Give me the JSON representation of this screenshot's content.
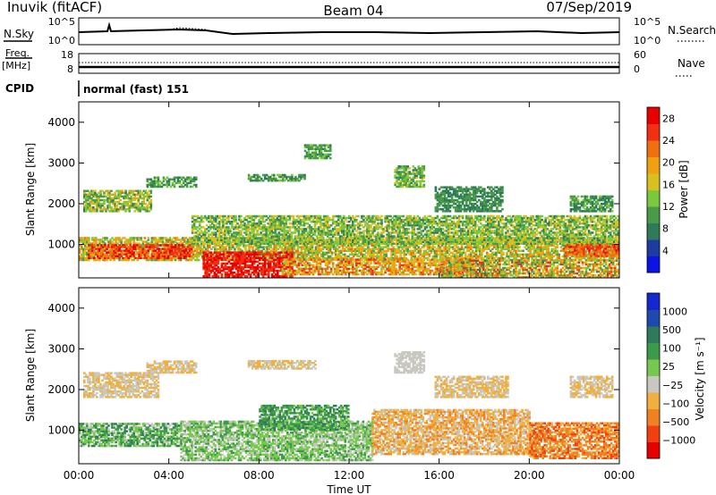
{
  "header": {
    "station": "Inuvik (fitACF)",
    "beam": "Beam 04",
    "date": "07/Sep/2019"
  },
  "nsky_panel": {
    "left_label": "N.Sky",
    "left_ticks": [
      "10^5",
      "10^0"
    ],
    "right_ticks": [
      "10^5",
      "10^0"
    ],
    "right_label": "N.Search"
  },
  "freq_panel": {
    "left_label_line1": "Freq.",
    "left_label_line2": "[MHz]",
    "left_ticks": [
      "18",
      "8"
    ],
    "right_ticks": [
      "60",
      "0"
    ],
    "right_label": "Nave"
  },
  "cpid": {
    "label": "CPID",
    "mode": "normal (fast) 151"
  },
  "colors": {
    "power_scale": [
      "#0a14e6",
      "#1e3ca0",
      "#2f7a5a",
      "#4a9a4a",
      "#7ac83c",
      "#d8c020",
      "#f0a010",
      "#f07010",
      "#f03010",
      "#e80000"
    ],
    "velocity_scale": [
      "#e80000",
      "#f04010",
      "#f08020",
      "#f0b040",
      "#c8c8c0",
      "#78c850",
      "#3c9a4a",
      "#2f7a5a",
      "#1e4ab0",
      "#1428d0"
    ]
  },
  "chart_data": [
    {
      "type": "heatmap",
      "name": "power",
      "xlabel": "",
      "ylabel": "Slant Range [km]",
      "x_ticks": [
        "00:00",
        "04:00",
        "08:00",
        "12:00",
        "16:00",
        "20:00",
        "00:00"
      ],
      "x_hours": [
        0,
        4,
        8,
        12,
        16,
        20,
        24
      ],
      "xlim": [
        0,
        24
      ],
      "y_ticks": [
        1000,
        2000,
        3000,
        4000
      ],
      "ylim": [
        180,
        4500
      ],
      "colorbar": {
        "label": "Power [dB]",
        "ticks": [
          "4",
          "8",
          "12",
          "16",
          "20",
          "24",
          "28"
        ],
        "range": [
          0,
          30
        ]
      },
      "regions": [
        {
          "t0": 0.0,
          "t1": 24.0,
          "r0": 600,
          "r1": 1150,
          "v0": 10,
          "v1": 22
        },
        {
          "t0": 0.4,
          "t1": 5.0,
          "r0": 650,
          "r1": 1000,
          "v0": 20,
          "v1": 30
        },
        {
          "t0": 5.5,
          "t1": 9.5,
          "r0": 200,
          "r1": 800,
          "v0": 24,
          "v1": 30
        },
        {
          "t0": 9.0,
          "t1": 17.5,
          "r0": 250,
          "r1": 650,
          "v0": 14,
          "v1": 26
        },
        {
          "t0": 0.2,
          "t1": 3.2,
          "r0": 1800,
          "r1": 2300,
          "v0": 8,
          "v1": 20
        },
        {
          "t0": 3.0,
          "t1": 5.2,
          "r0": 2400,
          "r1": 2650,
          "v0": 6,
          "v1": 14
        },
        {
          "t0": 7.5,
          "t1": 10.0,
          "r0": 2550,
          "r1": 2700,
          "v0": 6,
          "v1": 14
        },
        {
          "t0": 10.0,
          "t1": 11.2,
          "r0": 3100,
          "r1": 3450,
          "v0": 8,
          "v1": 14
        },
        {
          "t0": 14.0,
          "t1": 15.3,
          "r0": 2400,
          "r1": 2900,
          "v0": 8,
          "v1": 16
        },
        {
          "t0": 15.8,
          "t1": 18.8,
          "r0": 1800,
          "r1": 2400,
          "v0": 6,
          "v1": 12
        },
        {
          "t0": 21.8,
          "t1": 23.7,
          "r0": 1800,
          "r1": 2200,
          "v0": 6,
          "v1": 14
        },
        {
          "t0": 5.0,
          "t1": 24.0,
          "r0": 1000,
          "r1": 1700,
          "v0": 8,
          "v1": 18
        },
        {
          "t0": 21.5,
          "t1": 24.0,
          "r0": 700,
          "r1": 1000,
          "v0": 20,
          "v1": 28
        },
        {
          "t0": 16.0,
          "t1": 24.0,
          "r0": 180,
          "r1": 600,
          "v0": 8,
          "v1": 26
        }
      ]
    },
    {
      "type": "heatmap",
      "name": "velocity",
      "xlabel": "Time UT",
      "ylabel": "Slant Range [km]",
      "x_ticks": [
        "00:00",
        "04:00",
        "08:00",
        "12:00",
        "16:00",
        "20:00",
        "00:00"
      ],
      "x_hours": [
        0,
        4,
        8,
        12,
        16,
        20,
        24
      ],
      "xlim": [
        0,
        24
      ],
      "y_ticks": [
        1000,
        2000,
        3000,
        4000
      ],
      "ylim": [
        180,
        4500
      ],
      "colorbar": {
        "label": "Velocity [m s⁻¹]",
        "ticks": [
          "-1000",
          "-500",
          "-100",
          "-25",
          "25",
          "100",
          "500",
          "1000"
        ]
      },
      "regions": [
        {
          "t0": 0.0,
          "t1": 4.5,
          "r0": 600,
          "r1": 1150,
          "v0": 4,
          "v1": 7
        },
        {
          "t0": 4.5,
          "t1": 13.0,
          "r0": 250,
          "r1": 1200,
          "v0": 4,
          "v1": 6
        },
        {
          "t0": 13.0,
          "t1": 20.0,
          "r0": 400,
          "r1": 1500,
          "v0": 2,
          "v1": 4
        },
        {
          "t0": 20.0,
          "t1": 24.0,
          "r0": 300,
          "r1": 1200,
          "v0": 1,
          "v1": 3
        },
        {
          "t0": 0.2,
          "t1": 3.5,
          "r0": 1800,
          "r1": 2400,
          "v0": 3,
          "v1": 4
        },
        {
          "t0": 3.0,
          "t1": 5.2,
          "r0": 2400,
          "r1": 2700,
          "v0": 3,
          "v1": 4
        },
        {
          "t0": 7.5,
          "t1": 10.5,
          "r0": 2500,
          "r1": 2700,
          "v0": 3,
          "v1": 4
        },
        {
          "t0": 14.0,
          "t1": 15.3,
          "r0": 2400,
          "r1": 2900,
          "v0": 4,
          "v1": 4
        },
        {
          "t0": 15.8,
          "t1": 19.0,
          "r0": 1800,
          "r1": 2300,
          "v0": 3,
          "v1": 4
        },
        {
          "t0": 21.8,
          "t1": 23.7,
          "r0": 1800,
          "r1": 2300,
          "v0": 3,
          "v1": 4
        },
        {
          "t0": 8.0,
          "t1": 12.0,
          "r0": 1000,
          "r1": 1600,
          "v0": 5,
          "v1": 7
        }
      ]
    }
  ]
}
